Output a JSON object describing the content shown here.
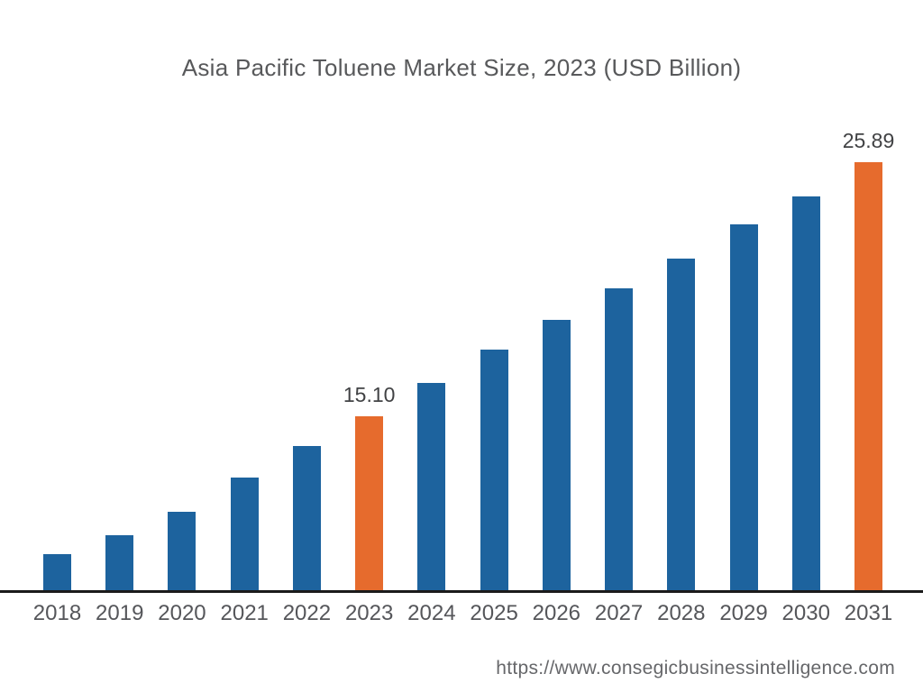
{
  "page": {
    "background": "#ffffff"
  },
  "chart_data": {
    "type": "bar",
    "title": "Asia Pacific Toluene Market Size, 2023 (USD Billion)",
    "xlabel": "",
    "ylabel": "",
    "categories": [
      "2018",
      "2019",
      "2020",
      "2021",
      "2022",
      "2023",
      "2024",
      "2025",
      "2026",
      "2027",
      "2028",
      "2029",
      "2030",
      "2031"
    ],
    "values": [
      9.25,
      10.05,
      11.05,
      12.5,
      13.85,
      15.1,
      16.5,
      17.95,
      19.2,
      20.55,
      21.8,
      23.25,
      24.45,
      25.89
    ],
    "data_labels": {
      "2023": "15.10",
      "2031": "25.89"
    },
    "highlighted_categories": [
      "2023",
      "2031"
    ],
    "bar_color": "#1d639e",
    "highlight_color": "#e66b2d",
    "axis_line_color": "#1b1b1b",
    "title_color": "#58595b",
    "tick_label_color": "#55565a",
    "data_label_color": "#414244",
    "ylim": [
      7.68,
      26.2
    ],
    "grid": false,
    "legend": false
  },
  "footer": {
    "url": "https://www.consegicbusinessintelligence.com"
  }
}
